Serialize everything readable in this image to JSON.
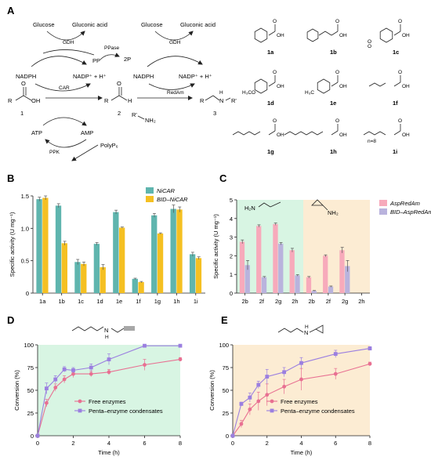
{
  "panelA": {
    "letter": "A",
    "left_cycle": {
      "glucose": "Glucose",
      "gluconic": "Gluconic acid",
      "gdh": "GDH",
      "nadph": "NADPH",
      "nadp": "NADP⁺ + H⁺",
      "car": "CAR",
      "atp": "ATP",
      "amp": "AMP",
      "ppk": "PPK",
      "polyp": "PolyP₆",
      "pp": "PP",
      "ppase": "PPase",
      "twop": "2P"
    },
    "right_cycle": {
      "glucose": "Glucose",
      "gluconic": "Gluconic acid",
      "gdh": "GDH",
      "nadph": "NADPH",
      "nadp": "NADP⁺ + H⁺",
      "redam": "RedAm"
    },
    "compounds": {
      "acid_num": "1",
      "aldehyde_num": "2",
      "amine_num": "3",
      "amine_reagent_r": "R'",
      "amine_reagent_nh2": "NH₂",
      "R": "R",
      "O": "O",
      "OH": "OH",
      "H": "H",
      "N": "N",
      "prod_r2": "R'"
    },
    "substrates": [
      {
        "id": "1a",
        "labels": [
          "OH",
          "O"
        ]
      },
      {
        "id": "1b",
        "labels": [
          "OH",
          "O"
        ]
      },
      {
        "id": "1c",
        "labels": [
          "OH",
          "O",
          "O",
          "O"
        ]
      },
      {
        "id": "1d",
        "labels": [
          "OH",
          "O",
          "H₃CO"
        ]
      },
      {
        "id": "1e",
        "labels": [
          "OH",
          "O",
          "H₃C"
        ]
      },
      {
        "id": "1f",
        "labels": [
          "OH",
          "O"
        ]
      },
      {
        "id": "1g",
        "labels": [
          "OH",
          "O"
        ]
      },
      {
        "id": "1h",
        "labels": [
          "OH",
          "O"
        ]
      },
      {
        "id": "1i",
        "labels": [
          "OH",
          "O",
          "n=8"
        ]
      }
    ]
  },
  "panelB": {
    "letter": "B",
    "ylabel": "Specific activity (U mg⁻¹)",
    "legend": [
      "NiCAR",
      "BID–NiCAR"
    ],
    "legend_italic_part": [
      "NiCAR",
      "NiCAR"
    ],
    "colors": {
      "s1": "#5fb5ae",
      "s2": "#f5c022"
    },
    "chart_data": {
      "type": "bar",
      "categories": [
        "1a",
        "1b",
        "1c",
        "1d",
        "1e",
        "1f",
        "1g",
        "1h",
        "1i"
      ],
      "series": [
        {
          "name": "NiCAR",
          "values": [
            1.45,
            1.35,
            0.48,
            0.76,
            1.25,
            0.22,
            1.2,
            1.3,
            0.6
          ],
          "errors": [
            0.03,
            0.03,
            0.04,
            0.02,
            0.03,
            0.01,
            0.03,
            0.06,
            0.03
          ]
        },
        {
          "name": "BID–NiCAR",
          "values": [
            1.47,
            0.77,
            0.45,
            0.4,
            1.01,
            0.17,
            0.92,
            1.29,
            0.54
          ],
          "errors": [
            0.03,
            0.03,
            0.03,
            0.04,
            0.01,
            0.01,
            0.01,
            0.04,
            0.02
          ]
        }
      ],
      "ylim": [
        0,
        1.5
      ],
      "yticks": [
        "0",
        "0.5",
        "1.0",
        "1.5"
      ]
    }
  },
  "panelC": {
    "letter": "C",
    "ylabel": "Specific activity (U mg⁻¹)",
    "legend": [
      "AspRedAm",
      "BID–AspRedAm"
    ],
    "colors": {
      "s1": "#f7aabb",
      "s2": "#b9b3dd",
      "bg1": "#d8f5e3",
      "bg2": "#fcecd3"
    },
    "amine1": {
      "H2N": "H₂N"
    },
    "amine2": {
      "NH2": "NH₂"
    },
    "chart_data": {
      "type": "bar",
      "categories": [
        "2b",
        "2f",
        "2g",
        "2h",
        "2b",
        "2f",
        "2g",
        "2h"
      ],
      "series": [
        {
          "name": "AspRedAm",
          "values": [
            2.75,
            3.6,
            3.7,
            2.3,
            0.85,
            2.0,
            2.3,
            0.0
          ],
          "errors": [
            0.1,
            0.06,
            0.06,
            0.1,
            0.04,
            0.05,
            0.15,
            0
          ]
        },
        {
          "name": "BID–AspRedAm",
          "values": [
            1.5,
            0.85,
            2.65,
            0.95,
            0.12,
            0.35,
            1.45,
            0.0
          ],
          "errors": [
            0.25,
            0.04,
            0.06,
            0.04,
            0.02,
            0.03,
            0.3,
            0
          ]
        }
      ],
      "ylim": [
        0,
        5
      ],
      "yticks": [
        "0",
        "1",
        "2",
        "3",
        "4",
        "5"
      ]
    }
  },
  "panelD": {
    "letter": "D",
    "ylabel": "Conversion (%)",
    "xlabel": "Time (h)",
    "legend": [
      "Free enzymes",
      "Penta–enzyme condensates"
    ],
    "colors": {
      "s1": "#e87092",
      "s2": "#9b7fe0",
      "bg": "#d8f5e3"
    },
    "struct": {
      "N": "N",
      "H": "H"
    },
    "chart_data": {
      "type": "line",
      "xlim": [
        0,
        8
      ],
      "ylim": [
        0,
        100
      ],
      "xticks": [
        "0",
        "2",
        "4",
        "6",
        "8"
      ],
      "yticks": [
        "0",
        "25",
        "50",
        "75",
        "100"
      ],
      "series": [
        {
          "name": "Free enzymes",
          "x": [
            0,
            0.5,
            1,
            1.5,
            2,
            3,
            4,
            6,
            8
          ],
          "y": [
            0,
            36,
            53,
            62,
            68,
            68,
            70,
            78,
            84
          ],
          "err": [
            0,
            4,
            4,
            4,
            4,
            3,
            3,
            6,
            2
          ]
        },
        {
          "name": "Penta–enzyme condensates",
          "x": [
            0,
            0.5,
            1,
            1.5,
            2,
            3,
            4,
            6,
            8
          ],
          "y": [
            0,
            52,
            62,
            73,
            72,
            75,
            84,
            99,
            99
          ],
          "err": [
            0,
            6,
            4,
            3,
            3,
            4,
            6,
            1,
            1
          ]
        }
      ]
    }
  },
  "panelE": {
    "letter": "E",
    "ylabel": "Conversion (%)",
    "xlabel": "Time (h)",
    "legend": [
      "Free enzymes",
      "Penta–enzyme condensates"
    ],
    "colors": {
      "s1": "#e87092",
      "s2": "#9b7fe0",
      "bg": "#fcecd3"
    },
    "struct": {
      "N": "N",
      "H": "H"
    },
    "chart_data": {
      "type": "line",
      "xlim": [
        0,
        8
      ],
      "ylim": [
        0,
        100
      ],
      "xticks": [
        "0",
        "2",
        "4",
        "6",
        "8"
      ],
      "yticks": [
        "0",
        "25",
        "50",
        "75",
        "100"
      ],
      "series": [
        {
          "name": "Free enzymes",
          "x": [
            0,
            0.5,
            1,
            1.5,
            2,
            3,
            4,
            6,
            8
          ],
          "y": [
            0,
            13,
            29,
            38,
            45,
            54,
            62,
            68,
            79
          ],
          "err": [
            0,
            4,
            6,
            10,
            12,
            8,
            12,
            6,
            2
          ]
        },
        {
          "name": "Penta–enzyme condensates",
          "x": [
            0,
            0.5,
            1,
            1.5,
            2,
            3,
            4,
            6,
            8
          ],
          "y": [
            0,
            35,
            42,
            56,
            65,
            70,
            80,
            90,
            96
          ],
          "err": [
            0,
            2,
            5,
            4,
            8,
            5,
            6,
            4,
            2
          ]
        }
      ]
    }
  }
}
